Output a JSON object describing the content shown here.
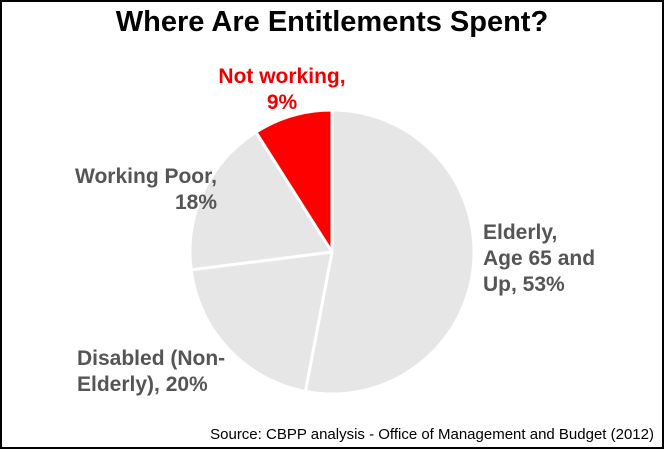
{
  "chart_data": {
    "type": "pie",
    "title": "Where Are Entitlements Spent?",
    "source": "Source: CBPP analysis - Office of Management and Budget (2012)",
    "slices": [
      {
        "label": "Elderly, Age 65 and Up",
        "value": 53,
        "value_text": "53%",
        "color": "#e6e6e6",
        "label_color": "#555555"
      },
      {
        "label": "Disabled (Non-Elderly)",
        "value": 20,
        "value_text": "20%",
        "color": "#e6e6e6",
        "label_color": "#555555"
      },
      {
        "label": "Working Poor",
        "value": 18,
        "value_text": "18%",
        "color": "#e6e6e6",
        "label_color": "#555555"
      },
      {
        "label": "Not working",
        "value": 9,
        "value_text": "9%",
        "color": "#ff0000",
        "label_color": "#ee0000"
      }
    ],
    "label_text": {
      "elderly": [
        "Elderly,",
        "Age 65 and",
        "Up, 53%"
      ],
      "disabled": [
        "Disabled (Non-",
        "Elderly), 20%"
      ],
      "working_poor": [
        "Working Poor,",
        "18%"
      ],
      "not_working": [
        "Not working,",
        "9%"
      ]
    },
    "start_angle": "12 o'clock, clockwise",
    "legend": "none"
  }
}
